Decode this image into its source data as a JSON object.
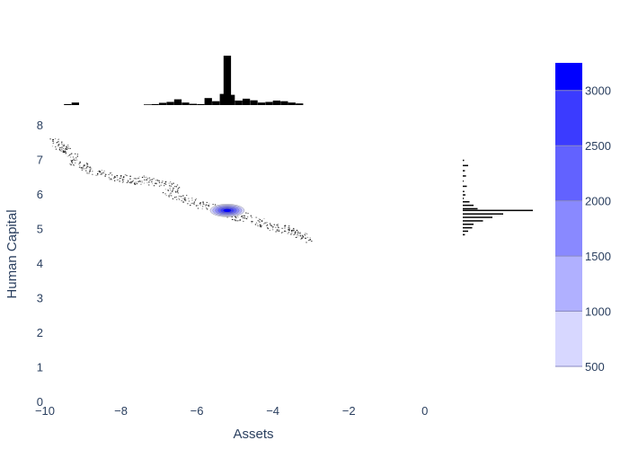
{
  "chart_data": {
    "type": "scatter",
    "subtype": "2d-density-contour-with-marginal-histograms",
    "title": "",
    "xlabel": "Assets",
    "ylabel": "Human Capital",
    "xlim": [
      -10,
      1
    ],
    "ylim": [
      0,
      8.6
    ],
    "x_ticks": [
      -10,
      -8,
      -6,
      -4,
      -2,
      0
    ],
    "x_tick_labels": [
      "−10",
      "−8",
      "−6",
      "−4",
      "−2",
      "0"
    ],
    "y_ticks": [
      0,
      1,
      2,
      3,
      4,
      5,
      6,
      7,
      8
    ],
    "y_tick_labels": [
      "0",
      "1",
      "2",
      "3",
      "4",
      "5",
      "6",
      "7",
      "8"
    ],
    "grid": false,
    "marker_color": "#000000",
    "density_peak": {
      "x": -5.2,
      "y": 5.55
    },
    "colorbar": {
      "tick_values": [
        500,
        1000,
        1500,
        2000,
        2500,
        3000
      ],
      "tick_labels": [
        "500",
        "1000",
        "1500",
        "2000",
        "2500",
        "3000"
      ],
      "range": [
        500,
        3250
      ],
      "levels": [
        {
          "from": 500,
          "to": 1000,
          "color": "#d7d7ff"
        },
        {
          "from": 1000,
          "to": 1500,
          "color": "#b0b0ff"
        },
        {
          "from": 1500,
          "to": 2000,
          "color": "#8989ff"
        },
        {
          "from": 2000,
          "to": 2500,
          "color": "#6262ff"
        },
        {
          "from": 2500,
          "to": 3000,
          "color": "#3b3bff"
        },
        {
          "from": 3000,
          "to": 3250,
          "color": "#0000ff"
        }
      ]
    },
    "scatter_segments": [
      {
        "x": [
          -9.8,
          -9.2
        ],
        "y": [
          7.6,
          7.1
        ]
      },
      {
        "x": [
          -9.3,
          -8.5
        ],
        "y": [
          7.0,
          6.6
        ]
      },
      {
        "x": [
          -8.5,
          -7.5
        ],
        "y": [
          6.6,
          6.4
        ]
      },
      {
        "x": [
          -7.5,
          -6.5
        ],
        "y": [
          6.5,
          6.2
        ]
      },
      {
        "x": [
          -6.8,
          -5.8
        ],
        "y": [
          6.1,
          5.7
        ]
      },
      {
        "x": [
          -5.8,
          -4.8
        ],
        "y": [
          5.7,
          5.3
        ]
      },
      {
        "x": [
          -4.8,
          -3.8
        ],
        "y": [
          5.4,
          5.0
        ]
      },
      {
        "x": [
          -3.8,
          -3.0
        ],
        "y": [
          5.1,
          4.7
        ]
      }
    ],
    "marginal_x_histogram": {
      "bin_centers": [
        -9.4,
        -9.2,
        -7.3,
        -7.1,
        -6.9,
        -6.7,
        -6.5,
        -6.3,
        -6.1,
        -5.9,
        -5.7,
        -5.5,
        -5.3,
        -5.2,
        -5.1,
        -4.9,
        -4.7,
        -4.5,
        -4.3,
        -4.1,
        -3.9,
        -3.7,
        -3.5,
        -3.3
      ],
      "counts": [
        3,
        8,
        2,
        3,
        7,
        10,
        18,
        8,
        4,
        3,
        22,
        12,
        35,
        155,
        32,
        14,
        20,
        15,
        8,
        10,
        14,
        12,
        8,
        5
      ]
    },
    "marginal_y_histogram": {
      "bin_centers": [
        7.0,
        6.85,
        6.7,
        6.55,
        6.4,
        6.25,
        6.1,
        6.0,
        5.9,
        5.8,
        5.7,
        5.6,
        5.55,
        5.45,
        5.35,
        5.25,
        5.15,
        5.05,
        4.95,
        4.85
      ],
      "counts": [
        5,
        20,
        8,
        12,
        3,
        15,
        6,
        10,
        4,
        25,
        40,
        55,
        260,
        150,
        110,
        75,
        40,
        35,
        20,
        8
      ]
    }
  }
}
